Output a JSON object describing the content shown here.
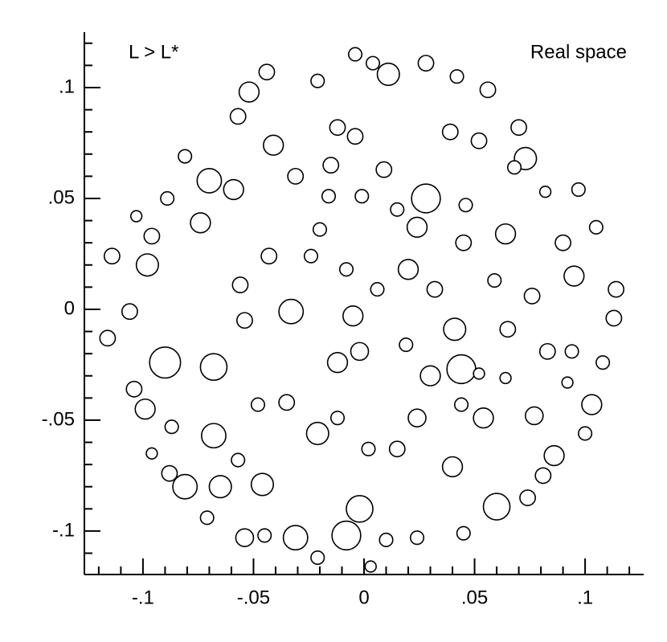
{
  "chart_data": {
    "type": "bubble",
    "annotations": [
      "L > L*",
      "Real space"
    ],
    "x": [
      0.011,
      -0.008,
      -0.002,
      0.06,
      -0.031,
      0.028,
      -0.068,
      -0.09,
      0.044,
      -0.07,
      -0.033,
      -0.052,
      0.073,
      0.095,
      0.041,
      -0.098,
      -0.081,
      -0.046,
      -0.065,
      -0.041,
      -0.068,
      -0.021,
      0.064,
      0.024,
      0.02,
      0.03,
      0.024,
      0.054,
      0.077,
      0.086,
      0.04,
      -0.005,
      -0.002,
      -0.043,
      -0.074,
      -0.096,
      -0.116,
      -0.106,
      -0.114,
      -0.104,
      -0.099,
      -0.059,
      -0.056,
      -0.054,
      -0.031,
      -0.012,
      -0.004,
      0.028,
      0.056,
      0.07,
      0.097,
      0.105,
      0.114,
      0.113,
      0.108,
      0.103,
      0.1,
      0.081,
      0.074,
      0.045,
      0.024,
      0.01,
      0.003,
      -0.021,
      -0.045,
      -0.054,
      -0.071,
      -0.088,
      -0.096,
      -0.087,
      -0.089,
      -0.103,
      -0.081,
      -0.057,
      -0.044,
      -0.021,
      0.004,
      0.042,
      0.068,
      0.082,
      0.09,
      0.076,
      0.065,
      0.083,
      0.094,
      0.092,
      0.064,
      0.044,
      0.015,
      0.002,
      -0.012,
      -0.035,
      -0.048,
      -0.057,
      -0.012,
      0.006,
      0.015,
      0.009,
      -0.004,
      -0.015,
      -0.016,
      -0.001,
      -0.02,
      -0.008,
      -0.024,
      0.039,
      0.052,
      0.046,
      0.045,
      0.032,
      0.059,
      0.052,
      0.019
    ],
    "values": [
      0.106,
      -0.102,
      -0.09,
      -0.089,
      -0.103,
      0.05,
      -0.026,
      -0.024,
      -0.027,
      0.058,
      -0.001,
      0.098,
      0.068,
      0.015,
      -0.009,
      0.02,
      -0.08,
      -0.079,
      -0.08,
      0.074,
      -0.057,
      -0.056,
      0.034,
      0.037,
      0.018,
      -0.03,
      -0.049,
      -0.049,
      -0.048,
      -0.066,
      -0.071,
      -0.003,
      -0.019,
      0.024,
      0.039,
      0.033,
      -0.013,
      -0.001,
      0.024,
      -0.036,
      -0.045,
      0.054,
      0.011,
      -0.005,
      0.06,
      0.082,
      0.115,
      0.111,
      0.099,
      0.082,
      0.054,
      0.037,
      0.009,
      -0.004,
      -0.024,
      -0.043,
      -0.056,
      -0.075,
      -0.085,
      -0.101,
      -0.103,
      -0.104,
      -0.116,
      -0.112,
      -0.102,
      -0.103,
      -0.094,
      -0.074,
      -0.065,
      -0.053,
      0.05,
      0.042,
      0.069,
      0.087,
      0.107,
      0.103,
      0.111,
      0.105,
      0.064,
      0.053,
      0.03,
      0.006,
      -0.009,
      -0.019,
      -0.019,
      -0.033,
      -0.031,
      -0.043,
      -0.063,
      -0.063,
      -0.049,
      -0.042,
      -0.043,
      -0.068,
      -0.024,
      0.009,
      0.045,
      0.063,
      0.078,
      0.065,
      0.051,
      0.051,
      0.036,
      0.018,
      0.024,
      0.08,
      0.076,
      0.047,
      0.03,
      0.009,
      0.013,
      -0.029,
      -0.016
    ],
    "sizes": [
      0.005,
      0.0065,
      0.006,
      0.006,
      0.0055,
      0.0065,
      0.006,
      0.007,
      0.0065,
      0.0055,
      0.0055,
      0.0045,
      0.005,
      0.0045,
      0.005,
      0.005,
      0.0055,
      0.005,
      0.005,
      0.0045,
      0.0055,
      0.005,
      0.0045,
      0.0045,
      0.0045,
      0.0045,
      0.004,
      0.0045,
      0.004,
      0.0045,
      0.0045,
      0.0045,
      0.004,
      0.0035,
      0.0045,
      0.0035,
      0.0035,
      0.0035,
      0.0035,
      0.0035,
      0.0045,
      0.0045,
      0.0035,
      0.0035,
      0.0035,
      0.0035,
      0.003,
      0.0035,
      0.0035,
      0.0035,
      0.003,
      0.003,
      0.0035,
      0.0035,
      0.003,
      0.0045,
      0.003,
      0.0035,
      0.0035,
      0.003,
      0.003,
      0.003,
      0.0025,
      0.003,
      0.003,
      0.004,
      0.003,
      0.0035,
      0.0025,
      0.003,
      0.003,
      0.0025,
      0.003,
      0.0035,
      0.0035,
      0.003,
      0.003,
      0.003,
      0.003,
      0.0025,
      0.0035,
      0.0035,
      0.0035,
      0.0035,
      0.003,
      0.0025,
      0.0025,
      0.003,
      0.0035,
      0.003,
      0.003,
      0.0035,
      0.003,
      0.003,
      0.0045,
      0.003,
      0.003,
      0.0035,
      0.0035,
      0.0035,
      0.003,
      0.003,
      0.003,
      0.003,
      0.003,
      0.0035,
      0.0035,
      0.003,
      0.0035,
      0.0035,
      0.003,
      0.0025,
      0.003
    ],
    "color": "#000000",
    "xlim": [
      -0.1265,
      0.1265
    ],
    "ylim": [
      -0.1196,
      0.125
    ],
    "xticks": [
      {
        "value": -0.1,
        "label": "-.1"
      },
      {
        "value": -0.05,
        "label": "-.05"
      },
      0,
      {
        "value": 0.05,
        "label": ".05"
      },
      {
        "value": 0.1,
        "label": ".1"
      }
    ],
    "yticks": [
      {
        "value": -0.1,
        "label": "-.1"
      },
      {
        "value": -0.05,
        "label": "-.05"
      },
      0,
      {
        "value": 0.05,
        "label": ".05"
      },
      {
        "value": 0.1,
        "label": ".1"
      }
    ],
    "xminorticks": [
      -0.12,
      -0.11,
      -0.09,
      -0.08,
      -0.07,
      -0.06,
      -0.04,
      -0.03,
      -0.02,
      -0.01,
      0.01,
      0.02,
      0.03,
      0.04,
      0.06,
      0.07,
      0.08,
      0.09,
      0.11,
      0.12
    ],
    "yminorticks": [
      -0.11,
      -0.09,
      -0.08,
      -0.07,
      -0.06,
      -0.04,
      -0.03,
      -0.02,
      -0.01,
      0.01,
      0.02,
      0.03,
      0.04,
      0.06,
      0.07,
      0.08,
      0.09,
      0.11,
      0.12
    ]
  }
}
